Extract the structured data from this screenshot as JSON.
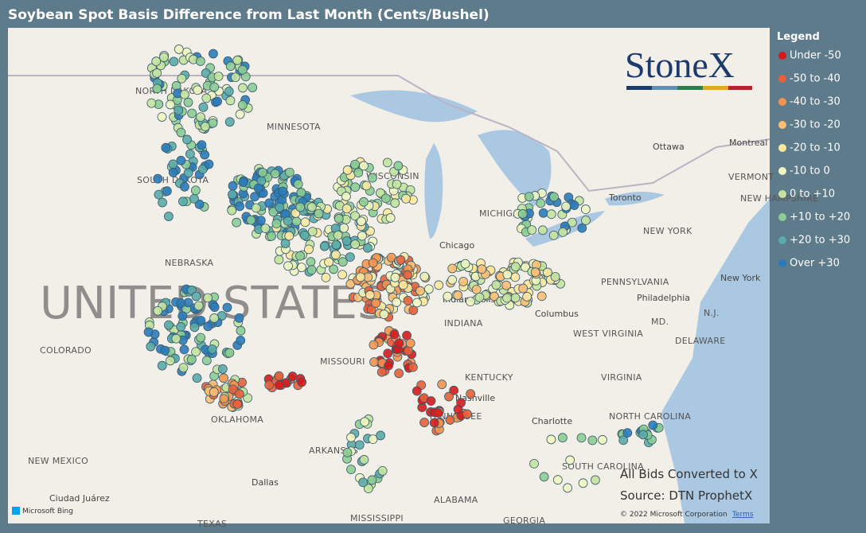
{
  "title": "Soybean Spot Basis Difference from Last Month (Cents/Bushel)",
  "legend": {
    "title": "Legend",
    "items": [
      {
        "label": "Under -50",
        "color": "#d7191c"
      },
      {
        "label": "-50 to -40",
        "color": "#e8603a"
      },
      {
        "label": "-40 to -30",
        "color": "#f39550"
      },
      {
        "label": "-30 to -20",
        "color": "#fbbf74"
      },
      {
        "label": "-20 to -10",
        "color": "#fde8a0"
      },
      {
        "label": "-10 to 0",
        "color": "#eef5c0"
      },
      {
        "label": "0 to +10",
        "color": "#c3e3a0"
      },
      {
        "label": "+10 to +20",
        "color": "#8ccc94"
      },
      {
        "label": "+20 to +30",
        "color": "#5aabaa"
      },
      {
        "label": "Over +30",
        "color": "#2b7bba"
      }
    ]
  },
  "logo": "StoneX",
  "notes": [
    "All Bids Converted to X",
    "Source: DTN ProphetX"
  ],
  "copyright": "© 2022 Microsoft Corporation",
  "terms": "Terms",
  "bing": "Microsoft Bing",
  "country": "UNITED STATES",
  "regions": [
    "NORTH DAKOTA",
    "SOUTH DAKOTA",
    "MINNESOTA",
    "WISCONSIN",
    "MICHIGAN",
    "NEBRASKA",
    "COLORADO",
    "MISSOURI",
    "KENTUCKY",
    "TENNESSEE",
    "ARKANSAS",
    "OKLAHOMA",
    "NEW MEXICO",
    "MISSISSIPPI",
    "ALABAMA",
    "GEORGIA",
    "TEXAS",
    "SOUTH CAROLINA",
    "NORTH CAROLINA",
    "VIRGINIA",
    "WEST VIRGINIA",
    "PENNSYLVANIA",
    "NEW YORK",
    "VERMONT",
    "NEW HAMPSHIRE",
    "MD.",
    "DELAWARE",
    "N.J.",
    "INDIANA"
  ],
  "cities": [
    "Ottawa",
    "Montreal",
    "Toronto",
    "Chicago",
    "Columbus",
    "Philadelphia",
    "New York",
    "Nashville",
    "Charlotte",
    "Dallas",
    "Ciudad Juárez",
    "Indianapolis"
  ]
}
